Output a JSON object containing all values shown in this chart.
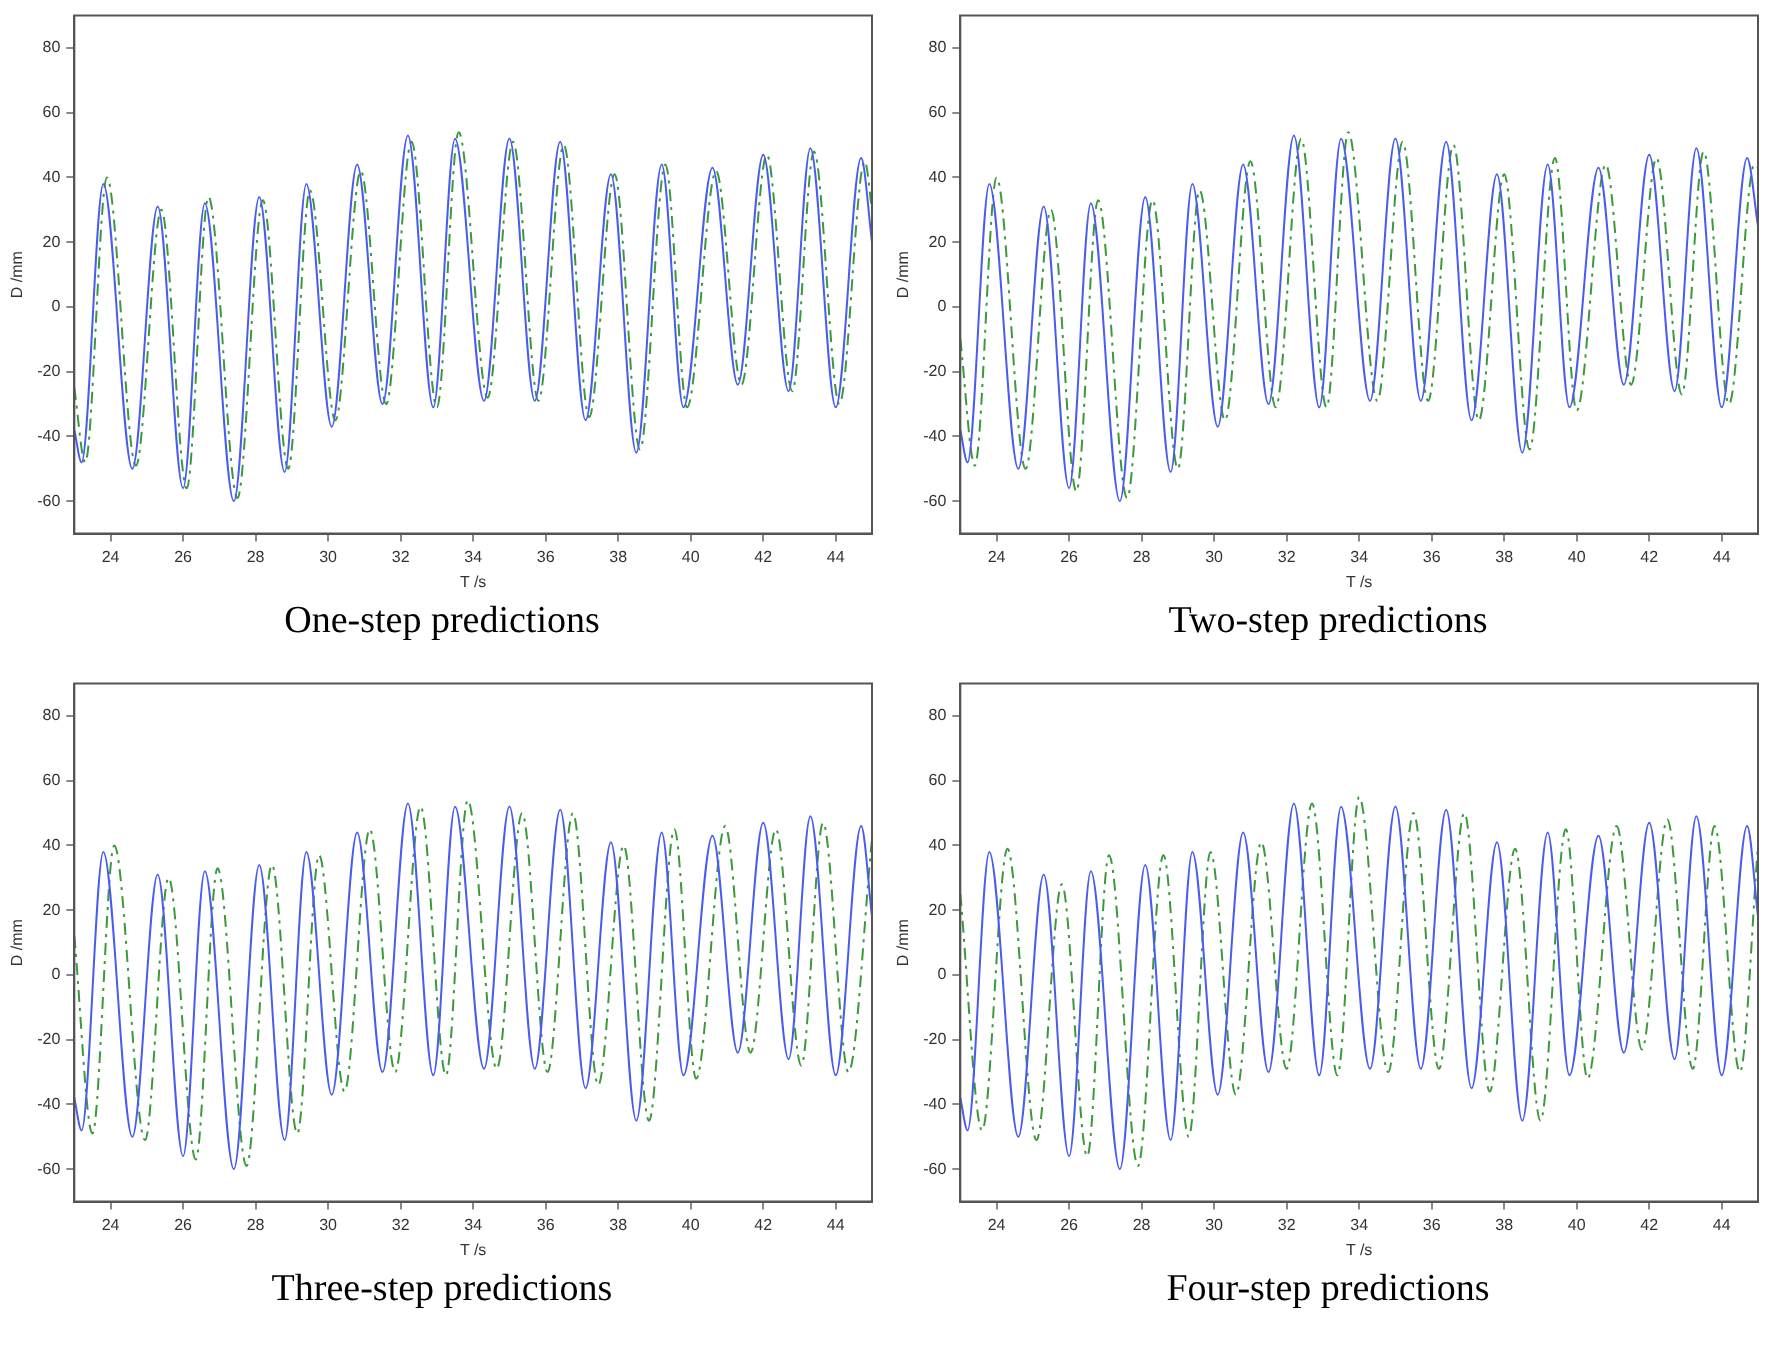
{
  "chart_data": [
    {
      "type": "line",
      "title": "One-step predictions",
      "xlabel": "T /s",
      "ylabel": "D /mm",
      "xlim": [
        23,
        45
      ],
      "xticks": [
        24,
        26,
        28,
        30,
        32,
        34,
        36,
        38,
        40,
        42,
        44
      ],
      "ylim": [
        -70,
        90
      ],
      "yticks": [
        -60,
        -40,
        -20,
        0,
        20,
        40,
        60,
        80
      ],
      "grid": false,
      "legend": false,
      "marker": "none",
      "series": [
        {
          "color": "#4a5cf0",
          "line_style": "solid",
          "x": [
            23.0,
            23.2,
            23.8,
            24.6,
            25.3,
            26.0,
            26.6,
            27.4,
            28.1,
            28.8,
            29.4,
            30.1,
            30.8,
            31.5,
            32.2,
            32.9,
            33.5,
            34.3,
            35.0,
            35.7,
            36.4,
            37.1,
            37.8,
            38.5,
            39.2,
            39.8,
            40.6,
            41.3,
            42.0,
            42.7,
            43.3,
            44.0,
            44.7,
            45.0
          ],
          "values": [
            -38,
            -48,
            38,
            -50,
            31,
            -56,
            32,
            -60,
            34,
            -51,
            38,
            -37,
            44,
            -30,
            53,
            -31,
            52,
            -29,
            52,
            -29,
            51,
            -35,
            41,
            -45,
            44,
            -31,
            43,
            -24,
            47,
            -26,
            49,
            -31,
            46,
            20
          ]
        },
        {
          "color": "#3a9a3a",
          "line_style": "dashed",
          "x": [
            23.0,
            23.3,
            23.9,
            24.7,
            25.4,
            26.1,
            26.7,
            27.5,
            28.2,
            28.9,
            29.5,
            30.2,
            30.9,
            31.6,
            32.3,
            33.0,
            33.6,
            34.4,
            35.1,
            35.8,
            36.5,
            37.2,
            37.9,
            38.6,
            39.3,
            39.9,
            40.7,
            41.4,
            42.1,
            42.8,
            43.4,
            44.1,
            44.8,
            45.0
          ],
          "values": [
            -25,
            -48,
            40,
            -49,
            30,
            -56,
            34,
            -59,
            33,
            -50,
            36,
            -35,
            42,
            -30,
            51,
            -31,
            54,
            -28,
            51,
            -29,
            50,
            -34,
            41,
            -44,
            44,
            -31,
            42,
            -24,
            47,
            -26,
            48,
            -30,
            45,
            30
          ]
        }
      ]
    },
    {
      "type": "line",
      "title": "Two-step predictions",
      "xlabel": "T /s",
      "ylabel": "D /mm",
      "xlim": [
        23,
        45
      ],
      "xticks": [
        24,
        26,
        28,
        30,
        32,
        34,
        36,
        38,
        40,
        42,
        44
      ],
      "ylim": [
        -70,
        90
      ],
      "yticks": [
        -60,
        -40,
        -20,
        0,
        20,
        40,
        60,
        80
      ],
      "grid": false,
      "legend": false,
      "marker": "none",
      "series": [
        {
          "color": "#4a5cf0",
          "line_style": "solid",
          "x": [
            23.0,
            23.2,
            23.8,
            24.6,
            25.3,
            26.0,
            26.6,
            27.4,
            28.1,
            28.8,
            29.4,
            30.1,
            30.8,
            31.5,
            32.2,
            32.9,
            33.5,
            34.3,
            35.0,
            35.7,
            36.4,
            37.1,
            37.8,
            38.5,
            39.2,
            39.8,
            40.6,
            41.3,
            42.0,
            42.7,
            43.3,
            44.0,
            44.7,
            45.0
          ],
          "values": [
            -38,
            -48,
            38,
            -50,
            31,
            -56,
            32,
            -60,
            34,
            -51,
            38,
            -37,
            44,
            -30,
            53,
            -31,
            52,
            -29,
            52,
            -29,
            51,
            -35,
            41,
            -45,
            44,
            -31,
            43,
            -24,
            47,
            -26,
            49,
            -31,
            46,
            25
          ]
        },
        {
          "color": "#3a9a3a",
          "line_style": "dashed",
          "x": [
            23.0,
            23.4,
            24.0,
            24.8,
            25.5,
            26.2,
            26.8,
            27.6,
            28.3,
            29.0,
            29.6,
            30.3,
            31.0,
            31.7,
            32.4,
            33.1,
            33.7,
            34.5,
            35.2,
            35.9,
            36.6,
            37.3,
            38.0,
            38.7,
            39.4,
            40.0,
            40.8,
            41.5,
            42.2,
            42.9,
            43.5,
            44.2,
            44.9,
            45.0
          ],
          "values": [
            -10,
            -49,
            40,
            -50,
            30,
            -57,
            33,
            -59,
            33,
            -50,
            36,
            -35,
            45,
            -31,
            52,
            -31,
            54,
            -29,
            51,
            -29,
            50,
            -35,
            41,
            -44,
            46,
            -32,
            44,
            -24,
            46,
            -27,
            48,
            -30,
            44,
            43
          ]
        }
      ]
    },
    {
      "type": "line",
      "title": "Three-step predictions",
      "xlabel": "T /s",
      "ylabel": "D /mm",
      "xlim": [
        23,
        45
      ],
      "xticks": [
        24,
        26,
        28,
        30,
        32,
        34,
        36,
        38,
        40,
        42,
        44
      ],
      "ylim": [
        -70,
        90
      ],
      "yticks": [
        -60,
        -40,
        -20,
        0,
        20,
        40,
        60,
        80
      ],
      "grid": false,
      "legend": false,
      "marker": "none",
      "series": [
        {
          "color": "#4a5cf0",
          "line_style": "solid",
          "x": [
            23.0,
            23.2,
            23.8,
            24.6,
            25.3,
            26.0,
            26.6,
            27.4,
            28.1,
            28.8,
            29.4,
            30.1,
            30.8,
            31.5,
            32.2,
            32.9,
            33.5,
            34.3,
            35.0,
            35.7,
            36.4,
            37.1,
            37.8,
            38.5,
            39.2,
            39.8,
            40.6,
            41.3,
            42.0,
            42.7,
            43.3,
            44.0,
            44.7,
            45.0
          ],
          "values": [
            -38,
            -48,
            38,
            -50,
            31,
            -56,
            32,
            -60,
            34,
            -51,
            38,
            -37,
            44,
            -30,
            53,
            -31,
            52,
            -29,
            52,
            -29,
            51,
            -35,
            41,
            -45,
            44,
            -31,
            43,
            -24,
            47,
            -26,
            49,
            -31,
            46,
            18
          ]
        },
        {
          "color": "#3a9a3a",
          "line_style": "dashed",
          "x": [
            23.0,
            23.5,
            24.1,
            24.95,
            25.6,
            26.35,
            26.95,
            27.75,
            28.45,
            29.15,
            29.75,
            30.45,
            31.15,
            31.85,
            32.55,
            33.25,
            33.85,
            34.65,
            35.35,
            36.05,
            36.75,
            37.45,
            38.15,
            38.85,
            39.55,
            40.15,
            40.95,
            41.65,
            42.35,
            43.05,
            43.65,
            44.35,
            45.0
          ],
          "values": [
            12,
            -49,
            40,
            -51,
            30,
            -57,
            33,
            -59,
            34,
            -49,
            37,
            -36,
            45,
            -30,
            52,
            -31,
            54,
            -29,
            50,
            -30,
            50,
            -34,
            40,
            -45,
            45,
            -32,
            46,
            -24,
            45,
            -28,
            47,
            -30,
            42
          ]
        }
      ]
    },
    {
      "type": "line",
      "title": "Four-step predictions",
      "xlabel": "T /s",
      "ylabel": "D /mm",
      "xlim": [
        23,
        45
      ],
      "xticks": [
        24,
        26,
        28,
        30,
        32,
        34,
        36,
        38,
        40,
        42,
        44
      ],
      "ylim": [
        -70,
        90
      ],
      "yticks": [
        -60,
        -40,
        -20,
        0,
        20,
        40,
        60,
        80
      ],
      "grid": false,
      "legend": false,
      "marker": "none",
      "series": [
        {
          "color": "#4a5cf0",
          "line_style": "solid",
          "x": [
            23.0,
            23.2,
            23.8,
            24.6,
            25.3,
            26.0,
            26.6,
            27.4,
            28.1,
            28.8,
            29.4,
            30.1,
            30.8,
            31.5,
            32.2,
            32.9,
            33.5,
            34.3,
            35.0,
            35.7,
            36.4,
            37.1,
            37.8,
            38.5,
            39.2,
            39.8,
            40.6,
            41.3,
            42.0,
            42.7,
            43.3,
            44.0,
            44.7,
            45.0
          ],
          "values": [
            -38,
            -48,
            38,
            -50,
            31,
            -56,
            32,
            -60,
            34,
            -51,
            38,
            -37,
            44,
            -30,
            53,
            -31,
            52,
            -29,
            52,
            -29,
            51,
            -35,
            41,
            -45,
            44,
            -31,
            43,
            -24,
            47,
            -26,
            49,
            -31,
            46,
            18
          ]
        },
        {
          "color": "#3a9a3a",
          "line_style": "dashed",
          "x": [
            23.0,
            23.6,
            24.3,
            25.1,
            25.8,
            26.5,
            27.1,
            27.9,
            28.6,
            29.3,
            29.9,
            30.6,
            31.3,
            32.0,
            32.7,
            33.4,
            34.0,
            34.8,
            35.5,
            36.2,
            36.9,
            37.6,
            38.3,
            39.0,
            39.7,
            40.3,
            41.1,
            41.8,
            42.5,
            43.2,
            43.8,
            44.5,
            45.0
          ],
          "values": [
            25,
            -48,
            39,
            -51,
            28,
            -56,
            37,
            -59,
            37,
            -50,
            38,
            -37,
            41,
            -29,
            53,
            -31,
            55,
            -30,
            50,
            -29,
            50,
            -36,
            39,
            -45,
            45,
            -32,
            46,
            -23,
            48,
            -29,
            46,
            -30,
            40
          ]
        }
      ]
    }
  ]
}
